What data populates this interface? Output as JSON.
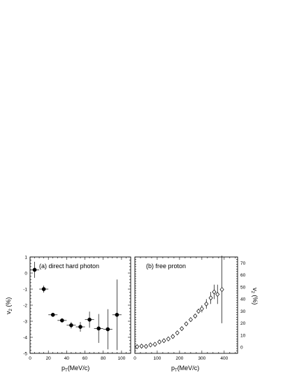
{
  "chart_data": [
    {
      "type": "scatter",
      "title": "(a) direct hard photon",
      "xlabel": {
        "main": "p",
        "sub": "T",
        "rest": "(MeV/c)"
      },
      "ylabel": {
        "main": "v",
        "sub": "2",
        "rest": " (%)"
      },
      "xlim": [
        0,
        110
      ],
      "ylim": [
        -5,
        1
      ],
      "xticks": [
        0,
        20,
        40,
        60,
        80,
        100
      ],
      "xtick_labels": [
        "0",
        "20",
        "40",
        "60",
        "80",
        "100"
      ],
      "yticks": [
        -5,
        -4,
        -3,
        -2,
        -1,
        0,
        1
      ],
      "ytick_labels": [
        "-5",
        "-4",
        "-3",
        "-2",
        "-1",
        "0",
        "1"
      ],
      "marker": "filled-circle",
      "color": "#000000",
      "points": [
        {
          "x": 5,
          "y": 0.2,
          "xerr": 5,
          "yerr": 0.5
        },
        {
          "x": 15,
          "y": -1.0,
          "xerr": 5,
          "yerr": 0.22
        },
        {
          "x": 25,
          "y": -2.6,
          "xerr": 5,
          "yerr": 0.12
        },
        {
          "x": 35,
          "y": -2.95,
          "xerr": 5,
          "yerr": 0.1
        },
        {
          "x": 45,
          "y": -3.25,
          "xerr": 5,
          "yerr": 0.2
        },
        {
          "x": 55,
          "y": -3.35,
          "xerr": 5,
          "yerr": 0.3
        },
        {
          "x": 65,
          "y": -2.9,
          "xerr": 5,
          "yerr": 0.5
        },
        {
          "x": 75,
          "y": -3.45,
          "xerr": 5,
          "yerr": 0.9
        },
        {
          "x": 85,
          "y": -3.5,
          "xerr": 5,
          "yerr": 1.25
        },
        {
          "x": 95,
          "y": -2.6,
          "xerr": 5,
          "yerr": 2.2
        }
      ]
    },
    {
      "type": "scatter",
      "title": "(b) free proton",
      "xlabel": {
        "main": "p",
        "sub": "T",
        "rest": "(MeV/c)"
      },
      "ylabel": {
        "main": "v",
        "sub": "2",
        "rest": " (%)"
      },
      "xlim": [
        0,
        460
      ],
      "ylim": [
        -5,
        75
      ],
      "xticks": [
        0,
        100,
        200,
        300,
        400
      ],
      "xtick_labels": [
        "0",
        "100",
        "200",
        "300",
        "400"
      ],
      "yticks": [
        0,
        10,
        20,
        30,
        40,
        50,
        60,
        70
      ],
      "ytick_labels": [
        "0",
        "10",
        "20",
        "30",
        "40",
        "50",
        "60",
        "70"
      ],
      "marker": "open-diamond",
      "color": "#000000",
      "points": [
        {
          "x": 10,
          "y": 0.5,
          "yerr": 0.5
        },
        {
          "x": 30,
          "y": 1.0,
          "yerr": 0.5
        },
        {
          "x": 50,
          "y": 0.8,
          "yerr": 0.5
        },
        {
          "x": 70,
          "y": 2.0,
          "yerr": 0.5
        },
        {
          "x": 90,
          "y": 2.5,
          "yerr": 0.5
        },
        {
          "x": 110,
          "y": 4.5,
          "yerr": 0.5
        },
        {
          "x": 130,
          "y": 5.5,
          "yerr": 0.6
        },
        {
          "x": 150,
          "y": 7.0,
          "yerr": 0.6
        },
        {
          "x": 170,
          "y": 9.0,
          "yerr": 0.7
        },
        {
          "x": 190,
          "y": 12.0,
          "yerr": 0.8
        },
        {
          "x": 210,
          "y": 15.5,
          "yerr": 0.8
        },
        {
          "x": 230,
          "y": 19.5,
          "yerr": 1.0
        },
        {
          "x": 250,
          "y": 23.0,
          "yerr": 1.2
        },
        {
          "x": 270,
          "y": 26.0,
          "yerr": 1.5
        },
        {
          "x": 285,
          "y": 30.0,
          "yerr": 2.0
        },
        {
          "x": 300,
          "y": 32.0,
          "yerr": 3.0
        },
        {
          "x": 320,
          "y": 36.0,
          "yerr": 4.0
        },
        {
          "x": 340,
          "y": 41.0,
          "yerr": 5.0
        },
        {
          "x": 355,
          "y": 46.0,
          "yerr": 6.0
        },
        {
          "x": 370,
          "y": 44.0,
          "yerr": 8.0
        },
        {
          "x": 390,
          "y": 48.0,
          "yerr": 28.0
        }
      ]
    }
  ]
}
